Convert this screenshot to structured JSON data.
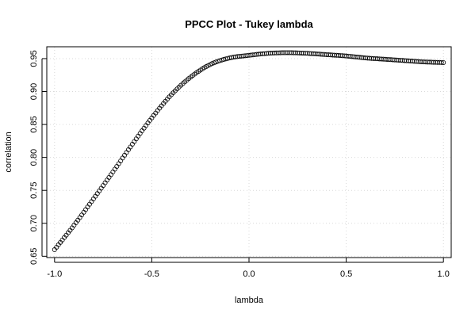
{
  "chart_data": {
    "type": "scatter",
    "title": "PPCC Plot - Tukey lambda",
    "xlabel": "lambda",
    "ylabel": "correlation",
    "xlim": [
      -1.04,
      1.04
    ],
    "ylim": [
      0.648,
      0.968
    ],
    "xticks": [
      -1.0,
      -0.5,
      0.0,
      0.5,
      1.0
    ],
    "xtick_labels": [
      "-1.0",
      "-0.5",
      "0.0",
      "0.5",
      "1.0"
    ],
    "yticks": [
      0.65,
      0.7,
      0.75,
      0.8,
      0.85,
      0.9,
      0.95
    ],
    "ytick_labels": [
      "0.65",
      "0.70",
      "0.75",
      "0.80",
      "0.85",
      "0.90",
      "0.95"
    ],
    "grid": true,
    "marker": "open-circle",
    "series": [
      {
        "x": [
          -1.0,
          -0.9,
          -0.8,
          -0.7,
          -0.6,
          -0.5,
          -0.4,
          -0.3,
          -0.2,
          -0.1,
          0.0,
          0.1,
          0.2,
          0.3,
          0.4,
          0.5,
          0.6,
          0.7,
          0.8,
          0.9,
          1.0
        ],
        "values": [
          0.66,
          0.697,
          0.737,
          0.778,
          0.82,
          0.86,
          0.895,
          0.922,
          0.941,
          0.951,
          0.955,
          0.958,
          0.959,
          0.958,
          0.956,
          0.954,
          0.951,
          0.949,
          0.947,
          0.945,
          0.944
        ]
      }
    ],
    "n_points": 201
  }
}
